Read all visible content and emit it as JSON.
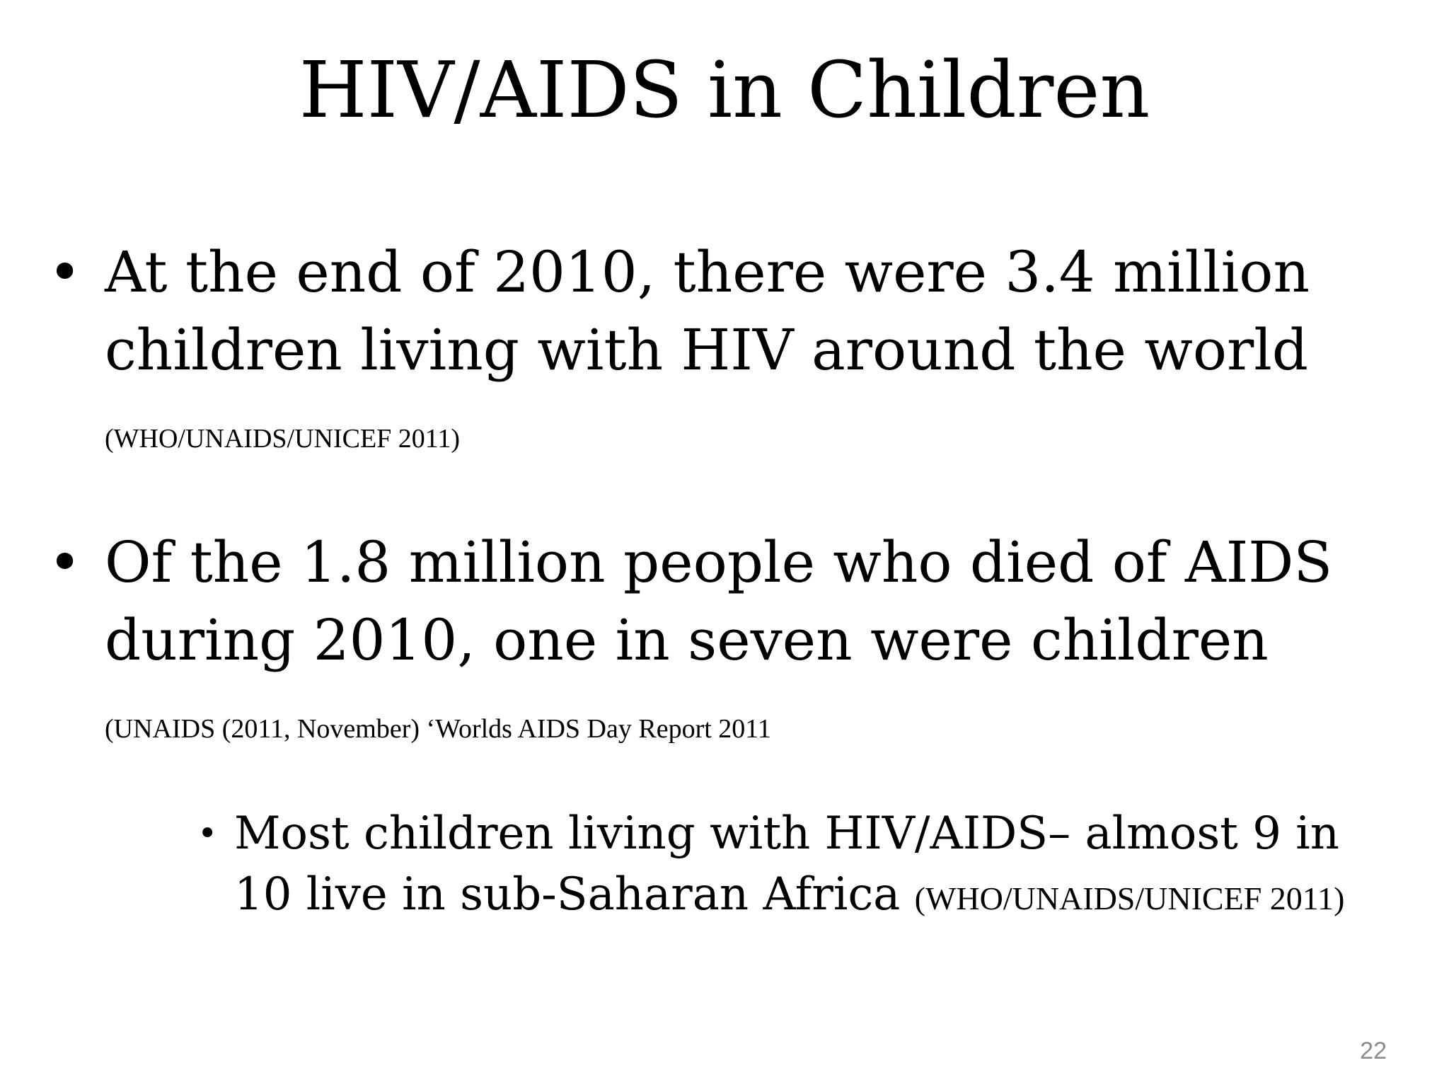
{
  "slide": {
    "title": "HIV/AIDS in Children",
    "bullets": [
      {
        "text": "At the end of 2010, there were 3.4 million children living with HIV around the world",
        "citation": "(WHO/UNAIDS/UNICEF 2011)"
      },
      {
        "text": "Of the 1.8 million people who died of AIDS during 2010, one in seven were children",
        "citation": "(UNAIDS (2011, November) ‘Worlds AIDS Day Report 2011"
      }
    ],
    "sub_bullets": [
      {
        "text": "Most children living with HIV/AIDS– almost 9 in 10 live in sub-Saharan Africa",
        "citation": "(WHO/UNAIDS/UNICEF 2011)"
      }
    ],
    "page_number": "22"
  }
}
